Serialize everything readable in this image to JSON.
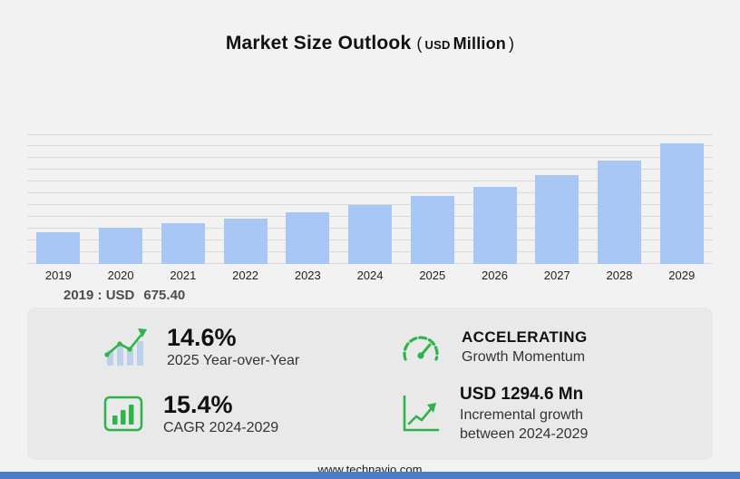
{
  "title": {
    "main": "Market Size Outlook",
    "open_paren": "(",
    "currency": "USD",
    "unit": "Million",
    "close_paren": ")"
  },
  "chart_data": {
    "type": "bar",
    "title": "Market Size Outlook (USD Million)",
    "categories": [
      "2019",
      "2020",
      "2021",
      "2022",
      "2023",
      "2024",
      "2025",
      "2026",
      "2027",
      "2028",
      "2029"
    ],
    "values": [
      675.4,
      755,
      850,
      960,
      1085,
      1238.3,
      1419.1,
      1625,
      1870,
      2160,
      2532.9
    ],
    "xlabel": "",
    "ylabel": "USD Million",
    "ylim": [
      0,
      2700
    ],
    "grid": true,
    "legend": false,
    "bar_color": "#a9c7f5"
  },
  "annotation": {
    "label": "2019 : USD",
    "value": "675.40"
  },
  "stats": {
    "yoy": {
      "value": "14.6%",
      "label": "2025 Year-over-Year",
      "icon": "bar-trend-icon"
    },
    "momentum": {
      "value": "ACCELERATING",
      "label": "Growth Momentum",
      "icon": "speedometer-icon"
    },
    "cagr": {
      "value": "15.4%",
      "label": "CAGR 2024-2029",
      "icon": "chart-box-icon"
    },
    "incremental": {
      "currency": "USD",
      "value": "1294.6 Mn",
      "label_line1": "Incremental growth",
      "label_line2": "between 2024-2029",
      "icon": "growth-arrow-icon"
    }
  },
  "footer": {
    "link": "www.technavio.com"
  },
  "colors": {
    "accent_green": "#2eb44b",
    "bar_blue": "#a9c7f5",
    "bottom_bar_blue": "#4d7dc5",
    "panel_gray": "#e9e9e9",
    "background": "#f2f2f2"
  }
}
